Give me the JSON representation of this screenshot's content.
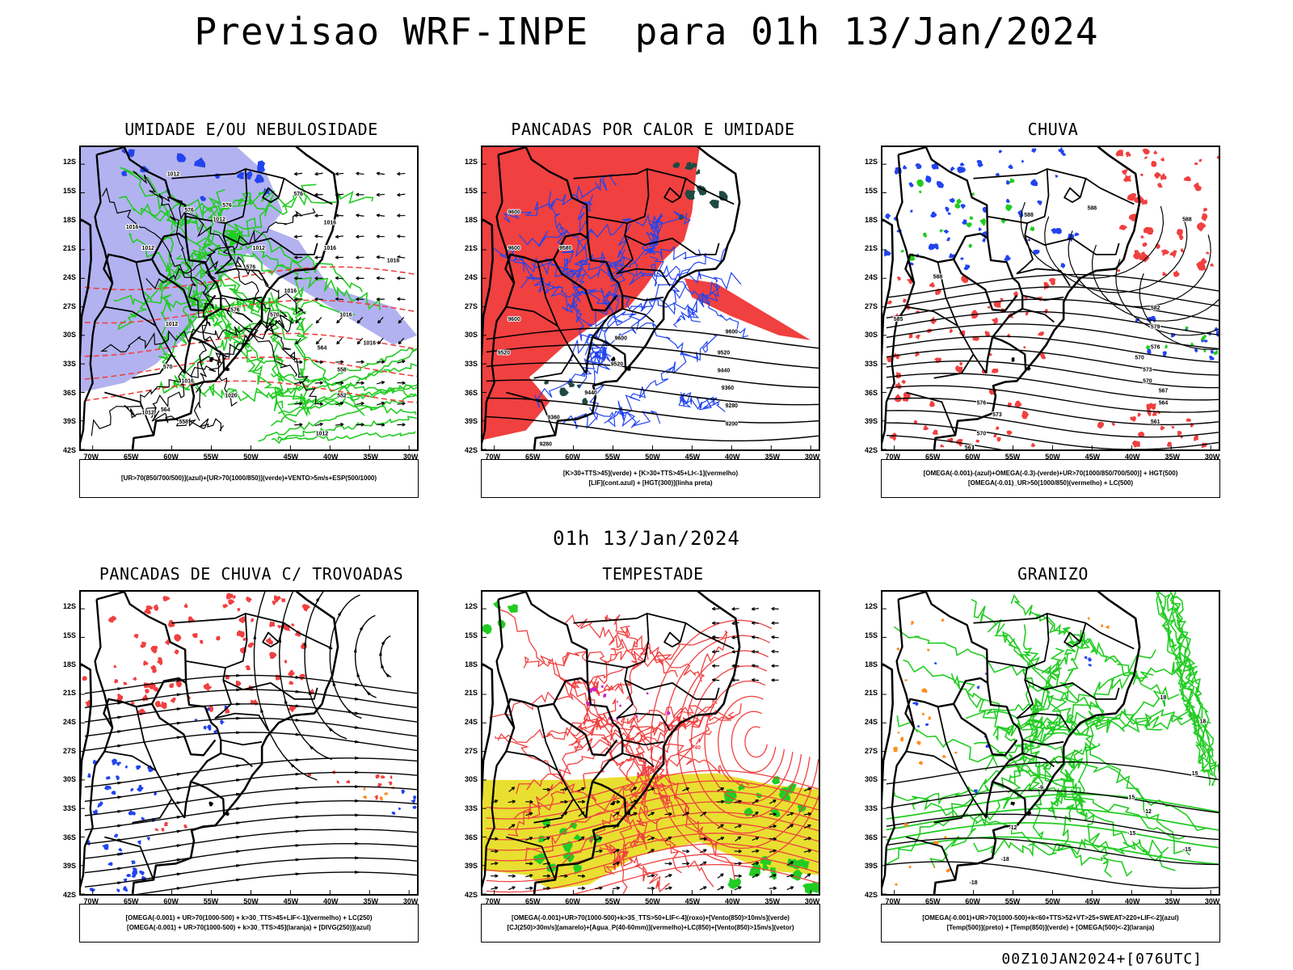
{
  "title": "Previsao WRF-INPE  para 01h 13/Jan/2024",
  "mid_title": "01h 13/Jan/2024",
  "footer": "00Z10JAN2024+[076UTC]",
  "lat_labels": [
    "12S",
    "15S",
    "18S",
    "21S",
    "24S",
    "27S",
    "30S",
    "33S",
    "36S",
    "39S",
    "42S"
  ],
  "lon_labels": [
    "70W",
    "65W",
    "60W",
    "55W",
    "50W",
    "45W",
    "40W",
    "35W",
    "30W"
  ],
  "colors": {
    "red": "#f04040",
    "green": "#22cc22",
    "blue": "#2244ee",
    "lavender": "#aaaaee",
    "yellow": "#e8df30",
    "orange": "#ff8c1a",
    "purple": "#cc22cc",
    "darkteal": "#1f4a44"
  },
  "panels": [
    {
      "id": "umidade",
      "title": "UMIDADE E/OU NEBULOSIDADE",
      "legend": [
        "[UR>70(850/700/500)](azul)+[UR>70(1000/850)](verde)+VENTO>5m/s+ESP(500/1000)"
      ],
      "labels": [
        {
          "t": "1012",
          "lon": -59.8,
          "lat": -13.2
        },
        {
          "t": "1012",
          "lon": -54.0,
          "lat": -18.0
        },
        {
          "t": "1016",
          "lon": -65.0,
          "lat": -18.8
        },
        {
          "t": "1012",
          "lon": -63.0,
          "lat": -21.0
        },
        {
          "t": "1012",
          "lon": -49.0,
          "lat": -21.0
        },
        {
          "t": "1016",
          "lon": -40.0,
          "lat": -18.3
        },
        {
          "t": "1016",
          "lon": -40.0,
          "lat": -21.0
        },
        {
          "t": "1016",
          "lon": -32.0,
          "lat": -22.3
        },
        {
          "t": "1016",
          "lon": -38.0,
          "lat": -28.0
        },
        {
          "t": "1016",
          "lon": -35.0,
          "lat": -31.0
        },
        {
          "t": "1016",
          "lon": -45.0,
          "lat": -25.5
        },
        {
          "t": "1012",
          "lon": -60.0,
          "lat": -29.0
        },
        {
          "t": "1016",
          "lon": -58.0,
          "lat": -35.0
        },
        {
          "t": "1020",
          "lon": -52.5,
          "lat": -36.5
        },
        {
          "t": "1012",
          "lon": -63.0,
          "lat": -38.3
        },
        {
          "t": "1012",
          "lon": -41.0,
          "lat": -40.5
        },
        {
          "t": "576",
          "lon": -57.8,
          "lat": -17.0
        },
        {
          "t": "576",
          "lon": -53.0,
          "lat": -16.5
        },
        {
          "t": "576",
          "lon": -44.0,
          "lat": -15.3
        },
        {
          "t": "576",
          "lon": -50.0,
          "lat": -23.0
        },
        {
          "t": "576",
          "lon": -52.0,
          "lat": -27.5
        },
        {
          "t": "570",
          "lon": -47.0,
          "lat": -28.0
        },
        {
          "t": "564",
          "lon": -41.0,
          "lat": -31.5
        },
        {
          "t": "558",
          "lon": -38.5,
          "lat": -33.8
        },
        {
          "t": "552",
          "lon": -38.5,
          "lat": -36.5
        },
        {
          "t": "564",
          "lon": -60.8,
          "lat": -38.0
        },
        {
          "t": "558",
          "lon": -58.5,
          "lat": -39.3
        },
        {
          "t": "570",
          "lon": -60.5,
          "lat": -33.5
        }
      ]
    },
    {
      "id": "pancadas_calor",
      "title": "PANCADAS POR CALOR E UMIDADE",
      "legend": [
        "[K>30+TTS>45](verde) + [K>30+TTS>45+LI<-1](vermelho)",
        "[LIF](cont.azul) + [HGT(300)](linha preta)"
      ],
      "labels": [
        {
          "t": "9600",
          "lon": -67.5,
          "lat": -17.2
        },
        {
          "t": "9600",
          "lon": -67.5,
          "lat": -21.0
        },
        {
          "t": "9580",
          "lon": -61.0,
          "lat": -21.0
        },
        {
          "t": "9600",
          "lon": -67.5,
          "lat": -28.5
        },
        {
          "t": "9520",
          "lon": -68.8,
          "lat": -32.0
        },
        {
          "t": "9600",
          "lon": -54.0,
          "lat": -30.5
        },
        {
          "t": "9520",
          "lon": -54.5,
          "lat": -33.2
        },
        {
          "t": "9600",
          "lon": -40.0,
          "lat": -29.8
        },
        {
          "t": "9520",
          "lon": -41.0,
          "lat": -32.0
        },
        {
          "t": "9440",
          "lon": -41.0,
          "lat": -33.9
        },
        {
          "t": "9360",
          "lon": -40.5,
          "lat": -35.7
        },
        {
          "t": "9280",
          "lon": -40.0,
          "lat": -37.6
        },
        {
          "t": "9200",
          "lon": -40.0,
          "lat": -39.5
        },
        {
          "t": "9440",
          "lon": -57.8,
          "lat": -36.2
        },
        {
          "t": "9360",
          "lon": -62.5,
          "lat": -38.8
        },
        {
          "t": "9280",
          "lon": -63.5,
          "lat": -41.6
        }
      ]
    },
    {
      "id": "chuva",
      "title": "CHUVA",
      "legend": [
        "[OMEGA(-0.001)-(azul)+OMEGA(-0.3)-(verde)+UR>70(1000/850/700/500)] + HGT(500)",
        "[OMEGA(-0.01)_UR>50(1000/850)(vermelho) + LC(500)"
      ],
      "labels": [
        {
          "t": "588",
          "lon": -53.0,
          "lat": -17.5
        },
        {
          "t": "588",
          "lon": -45.0,
          "lat": -16.8
        },
        {
          "t": "588",
          "lon": -33.0,
          "lat": -18.0
        },
        {
          "t": "588",
          "lon": -64.5,
          "lat": -24.0
        },
        {
          "t": "585",
          "lon": -69.5,
          "lat": -28.5
        },
        {
          "t": "582",
          "lon": -37.0,
          "lat": -27.3
        },
        {
          "t": "579",
          "lon": -37.0,
          "lat": -29.3
        },
        {
          "t": "576",
          "lon": -37.0,
          "lat": -31.4
        },
        {
          "t": "570",
          "lon": -39.0,
          "lat": -32.5
        },
        {
          "t": "573",
          "lon": -38.0,
          "lat": -33.8
        },
        {
          "t": "570",
          "lon": -38.0,
          "lat": -35.0
        },
        {
          "t": "567",
          "lon": -36.0,
          "lat": -36.0
        },
        {
          "t": "564",
          "lon": -36.0,
          "lat": -37.3
        },
        {
          "t": "561",
          "lon": -37.0,
          "lat": -39.3
        },
        {
          "t": "576",
          "lon": -59.0,
          "lat": -37.3
        },
        {
          "t": "573",
          "lon": -57.0,
          "lat": -38.5
        },
        {
          "t": "570",
          "lon": -59.0,
          "lat": -40.5
        },
        {
          "t": "567",
          "lon": -60.5,
          "lat": -42.0
        }
      ]
    },
    {
      "id": "pancadas_trovoadas",
      "title": "PANCADAS DE CHUVA C/ TROVOADAS",
      "legend": [
        "[OMEGA(-0.001) + UR>70(1000-500) + k>30_TTS>45+LIF<-1](vermelho) + LC(250)",
        "[OMEGA(-0.001) + UR>70(1000-500) + k>30_TTS>45](laranja) + [DIVG(250)](azul)"
      ],
      "labels": []
    },
    {
      "id": "tempestade",
      "title": "TEMPESTADE",
      "legend": [
        "[OMEGA(-0.001)+UR>70(1000-500)+k>35_TTS>50+LIF<-4](roxo)+[Vento(850)>10m/s](verde)",
        "[CJ(250)>30m/s](amarelo)+[Agua_P(40-60mm)](vermelho)+LC(850)+[Vento(850)>15m/s](vetor)"
      ],
      "labels": [
        {
          "t": "40",
          "lon": -44.3,
          "lat": -26.8
        }
      ]
    },
    {
      "id": "granizo",
      "title": "GRANIZO",
      "legend": [
        "[OMEGA(-0.001)+UR>70(1000-500)+k<60+TTS>52+VT>25+SWEAT>220+LIF<-2](azul)",
        "[Temp(500)](preto) + [Temp(850)](verde) + [OMEGA(500)<-2](laranja)"
      ],
      "labels": [
        {
          "t": "-9",
          "lon": -51.5,
          "lat": -31.0
        },
        {
          "t": "-12",
          "lon": -38.0,
          "lat": -33.5
        },
        {
          "t": "-15",
          "lon": -40.0,
          "lat": -35.8
        },
        {
          "t": "-12",
          "lon": -55.0,
          "lat": -35.2
        },
        {
          "t": "-15",
          "lon": -33.0,
          "lat": -37.5
        },
        {
          "t": "-18",
          "lon": -56.0,
          "lat": -38.5
        },
        {
          "t": "-18",
          "lon": -60.0,
          "lat": -41.0
        },
        {
          "t": "15",
          "lon": -40.0,
          "lat": -32.0
        },
        {
          "t": "18",
          "lon": -36.0,
          "lat": -21.5
        },
        {
          "t": "18",
          "lon": -31.0,
          "lat": -24.0
        },
        {
          "t": "15",
          "lon": -32.0,
          "lat": -29.5
        }
      ]
    }
  ]
}
